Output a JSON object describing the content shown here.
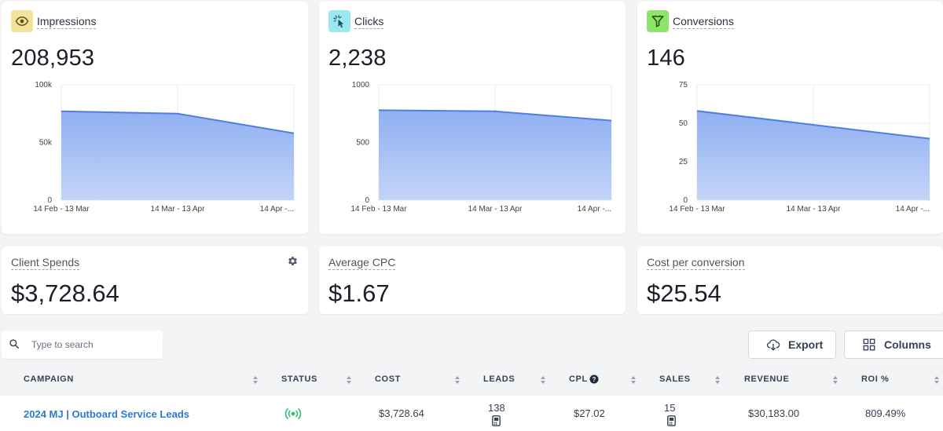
{
  "metrics": [
    {
      "title": "Impressions",
      "value": "208,953",
      "icon": "eye-icon",
      "icon_bg": "#f3e39a",
      "y_ticks": [
        "100k",
        "50k",
        "0"
      ],
      "x_ticks": [
        "14 Feb - 13 Mar",
        "14 Mar - 13 Apr",
        "14 Apr -..."
      ]
    },
    {
      "title": "Clicks",
      "value": "2,238",
      "icon": "cursor-click-icon",
      "icon_bg": "#9be7f2",
      "y_ticks": [
        "1000",
        "500",
        "0"
      ],
      "x_ticks": [
        "14 Feb - 13 Mar",
        "14 Mar - 13 Apr",
        "14 Apr -..."
      ]
    },
    {
      "title": "Conversions",
      "value": "146",
      "icon": "funnel-icon",
      "icon_bg": "#8fe46a",
      "y_ticks": [
        "75",
        "50",
        "25",
        "0"
      ],
      "x_ticks": [
        "14 Feb - 13 Mar",
        "14 Mar - 13 Apr",
        "14 Apr -..."
      ]
    }
  ],
  "chart_data": [
    {
      "type": "area",
      "categories": [
        "14 Feb - 13 Mar",
        "14 Mar - 13 Apr",
        "14 Apr -..."
      ],
      "values": [
        77000,
        75000,
        58000
      ],
      "ylim": [
        0,
        100000
      ],
      "ticks": [
        0,
        50000,
        100000
      ],
      "title": "Impressions",
      "color": "#4f7fe0"
    },
    {
      "type": "area",
      "categories": [
        "14 Feb - 13 Mar",
        "14 Mar - 13 Apr",
        "14 Apr -..."
      ],
      "values": [
        780,
        770,
        690
      ],
      "ylim": [
        0,
        1000
      ],
      "ticks": [
        0,
        500,
        1000
      ],
      "title": "Clicks",
      "color": "#4f7fe0"
    },
    {
      "type": "area",
      "categories": [
        "14 Feb - 13 Mar",
        "14 Mar - 13 Apr",
        "14 Apr -..."
      ],
      "values": [
        58,
        49,
        40
      ],
      "ylim": [
        0,
        75
      ],
      "ticks": [
        0,
        25,
        50,
        75
      ],
      "title": "Conversions",
      "color": "#4f7fe0"
    }
  ],
  "kpis": [
    {
      "title": "Client Spends",
      "value": "$3,728.64"
    },
    {
      "title": "Average CPC",
      "value": "$1.67"
    },
    {
      "title": "Cost per conversion",
      "value": "$25.54"
    }
  ],
  "search": {
    "placeholder": "Type to search"
  },
  "toolbar": {
    "export_label": "Export",
    "columns_label": "Columns"
  },
  "table": {
    "headers": {
      "campaign": "CAMPAIGN",
      "status": "STATUS",
      "cost": "COST",
      "leads": "LEADS",
      "cpl": "CPL",
      "sales": "SALES",
      "revenue": "REVENUE",
      "roi": "ROI %"
    },
    "rows": [
      {
        "campaign": "2024 MJ | Outboard Service Leads",
        "status_icon": "broadcast-active-icon",
        "status_color": "#2fbf71",
        "cost": "$3,728.64",
        "leads": "138",
        "cpl": "$27.02",
        "sales": "15",
        "revenue": "$30,183.00",
        "roi": "809.49%"
      }
    ]
  }
}
